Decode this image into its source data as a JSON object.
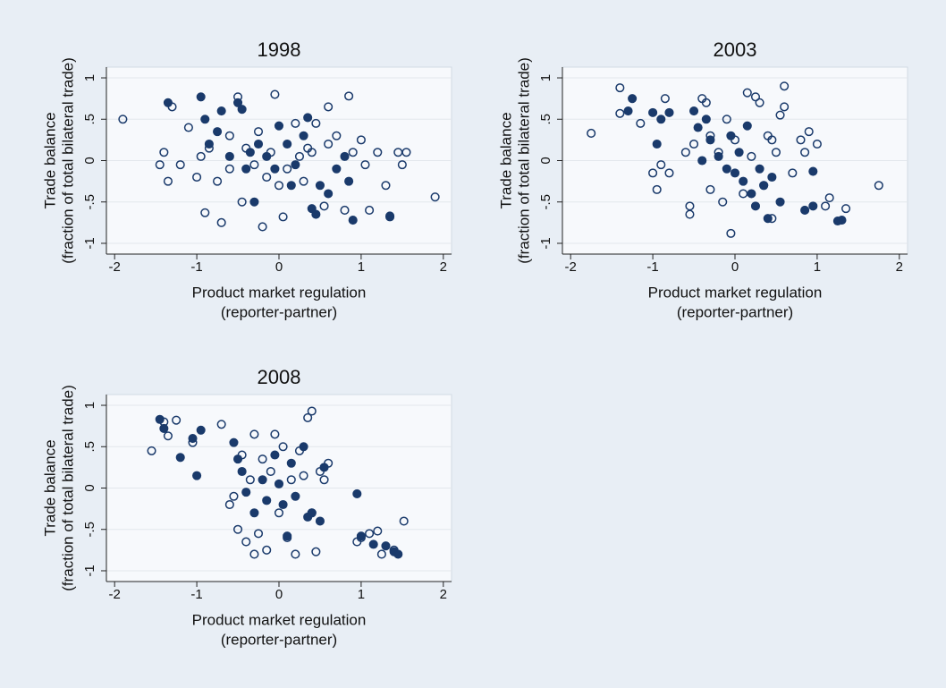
{
  "chart_data": [
    {
      "type": "scatter",
      "title": "1998",
      "x_label": [
        "Product market regulation",
        "(reporter-partner)"
      ],
      "y_label": [
        "Trade balance",
        "(fraction of total bilateral trade)"
      ],
      "xlim": [
        -2.1,
        2.1
      ],
      "ylim": [
        -1.13,
        1.13
      ],
      "xticks": [
        -2,
        -1,
        0,
        1,
        2
      ],
      "yticks": [
        -1,
        {
          "value": -0.5,
          "label": "-.5"
        },
        0,
        {
          "value": 0.5,
          "label": ".5"
        },
        1
      ],
      "grid": true,
      "series": [
        {
          "color": "#1a3a6b",
          "filled": false,
          "x": [
            -1.9,
            -1.45,
            -1.4,
            -1.35,
            -1.3,
            -1.2,
            -1.1,
            -1.0,
            -0.95,
            -0.9,
            -0.85,
            -0.75,
            -0.7,
            -0.6,
            -0.5,
            -0.45,
            -0.4,
            -0.3,
            -0.25,
            -0.2,
            -0.1,
            -0.05,
            0.05,
            0.1,
            0.2,
            0.25,
            0.3,
            0.4,
            0.45,
            0.55,
            0.6,
            0.7,
            0.8,
            0.85,
            0.9,
            1.0,
            1.05,
            1.1,
            1.2,
            1.3,
            1.35,
            1.45,
            1.5,
            1.55,
            1.9,
            0.6,
            -0.6,
            0.0,
            0.35,
            -0.15
          ],
          "y": [
            0.5,
            -0.05,
            0.1,
            -0.25,
            0.65,
            -0.05,
            0.4,
            -0.2,
            0.05,
            -0.63,
            0.15,
            -0.25,
            -0.75,
            -0.1,
            0.77,
            -0.5,
            0.15,
            -0.05,
            0.35,
            -0.8,
            0.1,
            0.8,
            -0.68,
            -0.1,
            0.45,
            0.05,
            -0.25,
            0.1,
            0.45,
            -0.55,
            0.65,
            0.3,
            -0.6,
            0.78,
            0.1,
            0.25,
            -0.05,
            -0.6,
            0.1,
            -0.3,
            -0.68,
            0.1,
            -0.05,
            0.1,
            -0.44,
            0.2,
            0.3,
            -0.3,
            0.15,
            -0.2
          ]
        },
        {
          "color": "#1a3a6b",
          "filled": true,
          "x": [
            -1.35,
            -0.95,
            -0.9,
            -0.85,
            -0.75,
            -0.7,
            -0.6,
            -0.5,
            -0.45,
            -0.4,
            -0.3,
            -0.25,
            -0.15,
            -0.05,
            0.0,
            0.1,
            0.2,
            0.3,
            0.35,
            0.4,
            0.45,
            0.5,
            0.6,
            0.7,
            0.8,
            0.85,
            0.9,
            1.35,
            0.15,
            -0.35
          ],
          "y": [
            0.7,
            0.77,
            0.5,
            0.2,
            0.35,
            0.6,
            0.05,
            0.7,
            0.62,
            -0.1,
            -0.5,
            0.2,
            0.05,
            -0.1,
            0.42,
            0.2,
            -0.05,
            0.3,
            0.52,
            -0.58,
            -0.65,
            -0.3,
            -0.4,
            -0.1,
            0.05,
            -0.25,
            -0.72,
            -0.67,
            -0.3,
            0.1
          ]
        }
      ]
    },
    {
      "type": "scatter",
      "title": "2003",
      "x_label": [
        "Product market regulation",
        "(reporter-partner)"
      ],
      "y_label": [
        "Trade balance",
        "(fraction of total bilateral trade)"
      ],
      "xlim": [
        -2.1,
        2.1
      ],
      "ylim": [
        -1.13,
        1.13
      ],
      "xticks": [
        -2,
        -1,
        0,
        1,
        2
      ],
      "yticks": [
        -1,
        {
          "value": -0.5,
          "label": "-.5"
        },
        0,
        {
          "value": 0.5,
          "label": ".5"
        },
        1
      ],
      "grid": true,
      "series": [
        {
          "color": "#1a3a6b",
          "filled": false,
          "x": [
            -1.75,
            -1.4,
            -1.4,
            -1.15,
            -1.0,
            -0.95,
            -0.9,
            -0.85,
            -0.8,
            -0.55,
            -0.55,
            -0.5,
            -0.4,
            -0.35,
            -0.3,
            -0.2,
            -0.15,
            -0.1,
            -0.05,
            0.0,
            0.1,
            0.15,
            0.25,
            0.3,
            0.35,
            0.4,
            0.45,
            0.5,
            0.55,
            0.6,
            0.6,
            0.7,
            0.8,
            0.85,
            0.9,
            1.0,
            1.1,
            1.15,
            1.35,
            1.75,
            -0.3,
            0.2,
            -0.6,
            0.45
          ],
          "y": [
            0.33,
            0.88,
            0.57,
            0.45,
            -0.15,
            -0.35,
            -0.05,
            0.75,
            -0.15,
            -0.55,
            -0.65,
            0.2,
            0.75,
            0.7,
            -0.35,
            0.1,
            -0.5,
            0.5,
            -0.88,
            0.25,
            -0.4,
            0.82,
            0.77,
            0.7,
            -0.3,
            0.3,
            -0.7,
            0.1,
            0.55,
            0.9,
            0.65,
            -0.15,
            0.25,
            0.1,
            0.35,
            0.2,
            -0.55,
            -0.45,
            -0.58,
            -0.3,
            0.3,
            0.05,
            0.1,
            0.25
          ]
        },
        {
          "color": "#1a3a6b",
          "filled": true,
          "x": [
            -1.3,
            -1.25,
            -1.0,
            -0.95,
            -0.9,
            -0.8,
            -0.5,
            -0.45,
            -0.35,
            -0.3,
            -0.2,
            -0.1,
            -0.05,
            0.0,
            0.05,
            0.1,
            0.15,
            0.2,
            0.25,
            0.3,
            0.35,
            0.4,
            0.45,
            0.55,
            0.85,
            0.95,
            0.95,
            1.25,
            1.3,
            -0.4
          ],
          "y": [
            0.6,
            0.75,
            0.58,
            0.2,
            0.5,
            0.58,
            0.6,
            0.4,
            0.5,
            0.25,
            0.05,
            -0.1,
            0.3,
            -0.15,
            0.1,
            -0.25,
            0.42,
            -0.4,
            -0.55,
            -0.1,
            -0.3,
            -0.7,
            -0.2,
            -0.5,
            -0.6,
            -0.55,
            -0.13,
            -0.73,
            -0.72,
            0.0
          ]
        }
      ]
    },
    {
      "type": "scatter",
      "title": "2008",
      "x_label": [
        "Product market regulation",
        "(reporter-partner)"
      ],
      "y_label": [
        "Trade balance",
        "(fraction of total bilateral trade)"
      ],
      "xlim": [
        -2.1,
        2.1
      ],
      "ylim": [
        -1.13,
        1.13
      ],
      "xticks": [
        -2,
        -1,
        0,
        1,
        2
      ],
      "yticks": [
        -1,
        {
          "value": -0.5,
          "label": "-.5"
        },
        0,
        {
          "value": 0.5,
          "label": ".5"
        },
        1
      ],
      "grid": true,
      "series": [
        {
          "color": "#1a3a6b",
          "filled": false,
          "x": [
            -1.55,
            -1.4,
            -1.35,
            -1.25,
            -1.05,
            -0.7,
            -0.6,
            -0.55,
            -0.5,
            -0.45,
            -0.4,
            -0.35,
            -0.3,
            -0.3,
            -0.25,
            -0.2,
            -0.15,
            -0.1,
            -0.05,
            0.0,
            0.05,
            0.1,
            0.15,
            0.2,
            0.25,
            0.3,
            0.35,
            0.4,
            0.4,
            0.45,
            0.5,
            0.55,
            0.6,
            0.95,
            1.0,
            1.1,
            1.2,
            1.25,
            1.4,
            1.52
          ],
          "y": [
            0.45,
            0.8,
            0.63,
            0.82,
            0.55,
            0.77,
            -0.2,
            -0.1,
            -0.5,
            0.4,
            -0.65,
            0.1,
            -0.8,
            0.65,
            -0.55,
            0.35,
            -0.75,
            0.2,
            0.65,
            -0.3,
            0.5,
            -0.6,
            0.1,
            -0.8,
            0.45,
            0.15,
            0.85,
            0.93,
            -0.3,
            -0.77,
            0.2,
            0.1,
            0.3,
            -0.65,
            -0.6,
            -0.55,
            -0.52,
            -0.8,
            -0.75,
            -0.4
          ]
        },
        {
          "color": "#1a3a6b",
          "filled": true,
          "x": [
            -1.45,
            -1.4,
            -1.2,
            -1.05,
            -1.0,
            -0.95,
            -0.55,
            -0.5,
            -0.45,
            -0.4,
            -0.3,
            -0.2,
            -0.15,
            -0.05,
            0.0,
            0.05,
            0.1,
            0.15,
            0.2,
            0.3,
            0.35,
            0.4,
            0.5,
            0.55,
            0.95,
            1.0,
            1.15,
            1.3,
            1.4,
            1.45
          ],
          "y": [
            0.83,
            0.72,
            0.37,
            0.6,
            0.15,
            0.7,
            0.55,
            0.35,
            0.2,
            -0.05,
            -0.3,
            0.1,
            -0.15,
            0.4,
            0.05,
            -0.2,
            -0.58,
            0.3,
            -0.1,
            0.5,
            -0.35,
            -0.3,
            -0.4,
            0.25,
            -0.07,
            -0.58,
            -0.68,
            -0.7,
            -0.77,
            -0.8
          ]
        }
      ]
    }
  ]
}
